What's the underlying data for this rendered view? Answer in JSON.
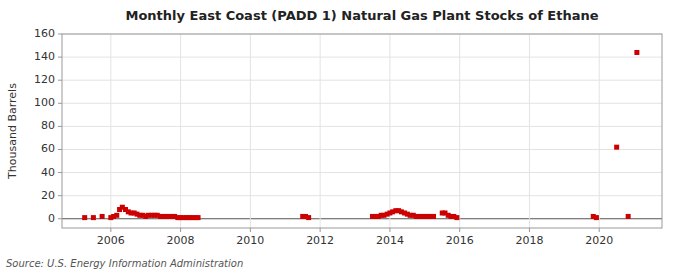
{
  "chart_data": {
    "type": "scatter",
    "title": "Monthly East Coast (PADD 1) Natural Gas Plant Stocks of Ethane",
    "ylabel": "Thousand Barrels",
    "source": "Source: U.S. Energy Information Administration",
    "x": [
      2005.25,
      2005.5,
      2005.75,
      2006.0,
      2006.08,
      2006.17,
      2006.25,
      2006.33,
      2006.42,
      2006.5,
      2006.58,
      2006.67,
      2006.75,
      2006.83,
      2006.92,
      2007.0,
      2007.08,
      2007.17,
      2007.25,
      2007.33,
      2007.42,
      2007.5,
      2007.58,
      2007.67,
      2007.75,
      2007.83,
      2007.92,
      2008.0,
      2008.08,
      2008.17,
      2008.25,
      2008.33,
      2008.42,
      2008.5,
      2011.5,
      2011.58,
      2011.67,
      2013.5,
      2013.58,
      2013.67,
      2013.75,
      2013.83,
      2013.92,
      2014.0,
      2014.08,
      2014.17,
      2014.25,
      2014.33,
      2014.42,
      2014.5,
      2014.58,
      2014.67,
      2014.75,
      2014.83,
      2014.92,
      2015.0,
      2015.08,
      2015.17,
      2015.25,
      2015.5,
      2015.58,
      2015.67,
      2015.75,
      2015.83,
      2015.92,
      2019.83,
      2019.92,
      2020.5,
      2020.83,
      2021.08
    ],
    "values": [
      1,
      1,
      2,
      1,
      2,
      3,
      8,
      10,
      8,
      6,
      5,
      5,
      4,
      3,
      3,
      2,
      3,
      3,
      3,
      3,
      2,
      2,
      2,
      2,
      2,
      2,
      1,
      1,
      1,
      1,
      1,
      1,
      1,
      1,
      2,
      2,
      1,
      2,
      2,
      2,
      3,
      3,
      4,
      5,
      6,
      7,
      7,
      6,
      5,
      4,
      3,
      3,
      2,
      2,
      2,
      2,
      2,
      2,
      2,
      5,
      5,
      3,
      2,
      2,
      1,
      2,
      1,
      62,
      2,
      144
    ],
    "color": "#cc0000",
    "marker": "square",
    "xlim": [
      2004.6,
      2021.8
    ],
    "xticks": [
      2006,
      2008,
      2010,
      2012,
      2014,
      2016,
      2018,
      2020
    ],
    "ylim": [
      -8,
      160
    ],
    "yticks": [
      0,
      20,
      40,
      60,
      80,
      100,
      120,
      140,
      160
    ],
    "grid": true
  }
}
